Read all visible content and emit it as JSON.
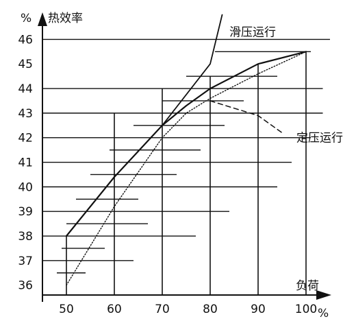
{
  "chart_data": {
    "type": "line",
    "title": "",
    "y_unit": "%",
    "y_title": "热效率",
    "x_title": "负荷",
    "x_unit": "%",
    "xlim": [
      45,
      105
    ],
    "ylim": [
      35.6,
      47.1
    ],
    "x_ticks": [
      50,
      60,
      70,
      80,
      90,
      100
    ],
    "y_ticks": [
      36,
      37,
      38,
      39,
      40,
      41,
      42,
      43,
      44,
      45,
      46
    ],
    "vertical_gridlines": [
      {
        "x": 50,
        "y_top": 38.0
      },
      {
        "x": 60,
        "y_top": 43.0
      },
      {
        "x": 70,
        "y_top": 44.0
      },
      {
        "x": 80,
        "y_top": 44.5
      },
      {
        "x": 90,
        "y_top": 45.0
      },
      {
        "x": 100,
        "y_top": 45.5
      }
    ],
    "horizontal_gridlines": [
      {
        "y": 36.5,
        "x_start": 48.0,
        "x_end": 54.0
      },
      {
        "y": 37.0,
        "x_start": 45.0,
        "x_end": 64.0
      },
      {
        "y": 37.5,
        "x_start": 49.0,
        "x_end": 58.0
      },
      {
        "y": 38.0,
        "x_start": 45.0,
        "x_end": 77.0
      },
      {
        "y": 38.5,
        "x_start": 50.0,
        "x_end": 67.0
      },
      {
        "y": 39.0,
        "x_start": 45.0,
        "x_end": 84.0
      },
      {
        "y": 39.5,
        "x_start": 52.0,
        "x_end": 65.0
      },
      {
        "y": 40.0,
        "x_start": 45.0,
        "x_end": 94.0
      },
      {
        "y": 40.5,
        "x_start": 55.0,
        "x_end": 73.0
      },
      {
        "y": 41.0,
        "x_start": 45.0,
        "x_end": 97.0
      },
      {
        "y": 41.5,
        "x_start": 59.0,
        "x_end": 78.0
      },
      {
        "y": 42.0,
        "x_start": 45.0,
        "x_end": 101.0
      },
      {
        "y": 42.5,
        "x_start": 64.0,
        "x_end": 83.0
      },
      {
        "y": 43.0,
        "x_start": 45.0,
        "x_end": 103.5
      },
      {
        "y": 43.5,
        "x_start": 70.0,
        "x_end": 87.0
      },
      {
        "y": 44.0,
        "x_start": 45.0,
        "x_end": 103.5
      },
      {
        "y": 44.5,
        "x_start": 75.0,
        "x_end": 94.0
      },
      {
        "y": 45.5,
        "x_start": 81.0,
        "x_end": 101.0
      },
      {
        "y": 46.0,
        "x_start": 45.0,
        "x_end": 105.0
      }
    ],
    "series": [
      {
        "name": "滑压运行",
        "style": "solid",
        "x": [
          50.0,
          60.0,
          70.0,
          75.0,
          80.0,
          90.0,
          100.0
        ],
        "y": [
          38.0,
          40.4,
          42.5,
          43.3,
          44.0,
          45.0,
          45.5
        ]
      },
      {
        "name": "",
        "style": "solid-extension",
        "x": [
          70.0,
          80.0,
          82.5
        ],
        "y": [
          42.5,
          45.0,
          47.0
        ]
      },
      {
        "name": "",
        "style": "dotted",
        "x": [
          50.0,
          60.0,
          70.0,
          75.0,
          80.0,
          90.0,
          100.0
        ],
        "y": [
          36.0,
          39.2,
          42.0,
          43.0,
          43.6,
          44.6,
          45.5
        ]
      },
      {
        "name": "定压运行",
        "style": "dashed",
        "x": [
          80.0,
          90.0,
          95.0
        ],
        "y": [
          43.5,
          42.9,
          42.2
        ]
      }
    ],
    "annotations": [
      {
        "text": "滑压运行",
        "x": 84.0,
        "y": 46.3
      },
      {
        "text": "定压运行",
        "x": 98.0,
        "y": 42.0
      }
    ],
    "grid": false,
    "legend": "none"
  }
}
